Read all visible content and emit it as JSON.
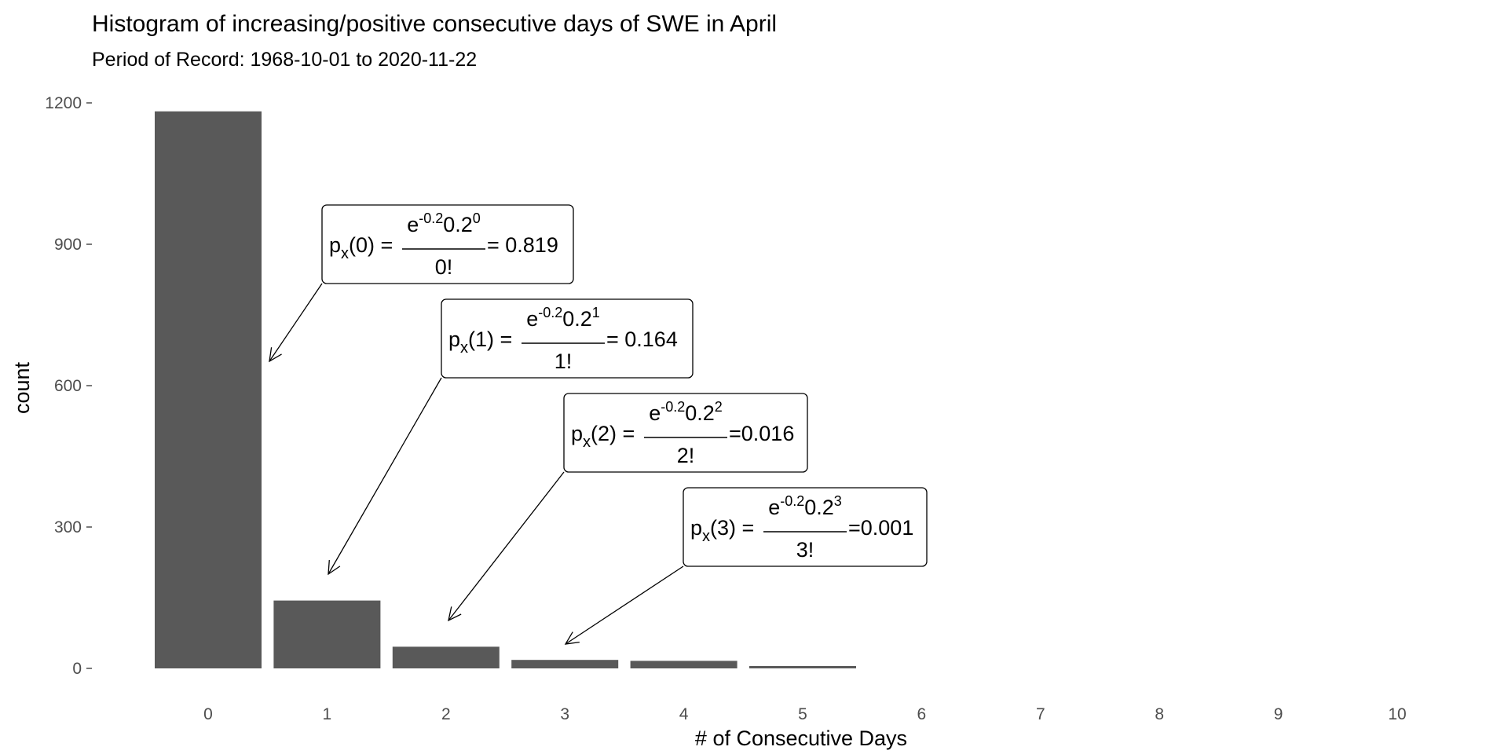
{
  "chart_data": {
    "type": "bar",
    "title": "Histogram of increasing/positive consecutive days of  SWE in April",
    "subtitle": "Period of Record: 1968-10-01 to 2020-11-22",
    "xlabel": "# of Consecutive Days",
    "ylabel": "count",
    "categories": [
      "0",
      "1",
      "2",
      "3",
      "4",
      "5",
      "6",
      "7",
      "8",
      "9",
      "10"
    ],
    "values": [
      1182,
      144,
      46,
      18,
      16,
      5,
      0,
      0,
      0,
      0,
      0
    ],
    "ylim": [
      0,
      1200
    ],
    "yticks": [
      0,
      300,
      600,
      900,
      1200
    ],
    "ytick_labels": [
      "0",
      "300",
      "600",
      "900",
      "1200"
    ],
    "grid": false,
    "bar_color": "#595959",
    "annotations": [
      {
        "target": "0",
        "k": "0",
        "label": "p",
        "sub": "x",
        "base": "e",
        "exp": "-0.2",
        "mid": "0.2",
        "power": "0",
        "den": "0!",
        "eq": "=",
        "result": "= 0.819"
      },
      {
        "target": "1",
        "k": "1",
        "label": "p",
        "sub": "x",
        "base": "e",
        "exp": "-0.2",
        "mid": "0.2",
        "power": "1",
        "den": "1!",
        "eq": "=",
        "result": "= 0.164"
      },
      {
        "target": "2",
        "k": "2",
        "label": "p",
        "sub": "x",
        "base": "e",
        "exp": "-0.2",
        "mid": "0.2",
        "power": "2",
        "den": "2!",
        "eq": "=",
        "result": "=0.016"
      },
      {
        "target": "3",
        "k": "3",
        "label": "p",
        "sub": "x",
        "base": "e",
        "exp": "-0.2",
        "mid": "0.2",
        "power": "3",
        "den": "3!",
        "eq": "=",
        "result": "=0.001"
      }
    ]
  }
}
